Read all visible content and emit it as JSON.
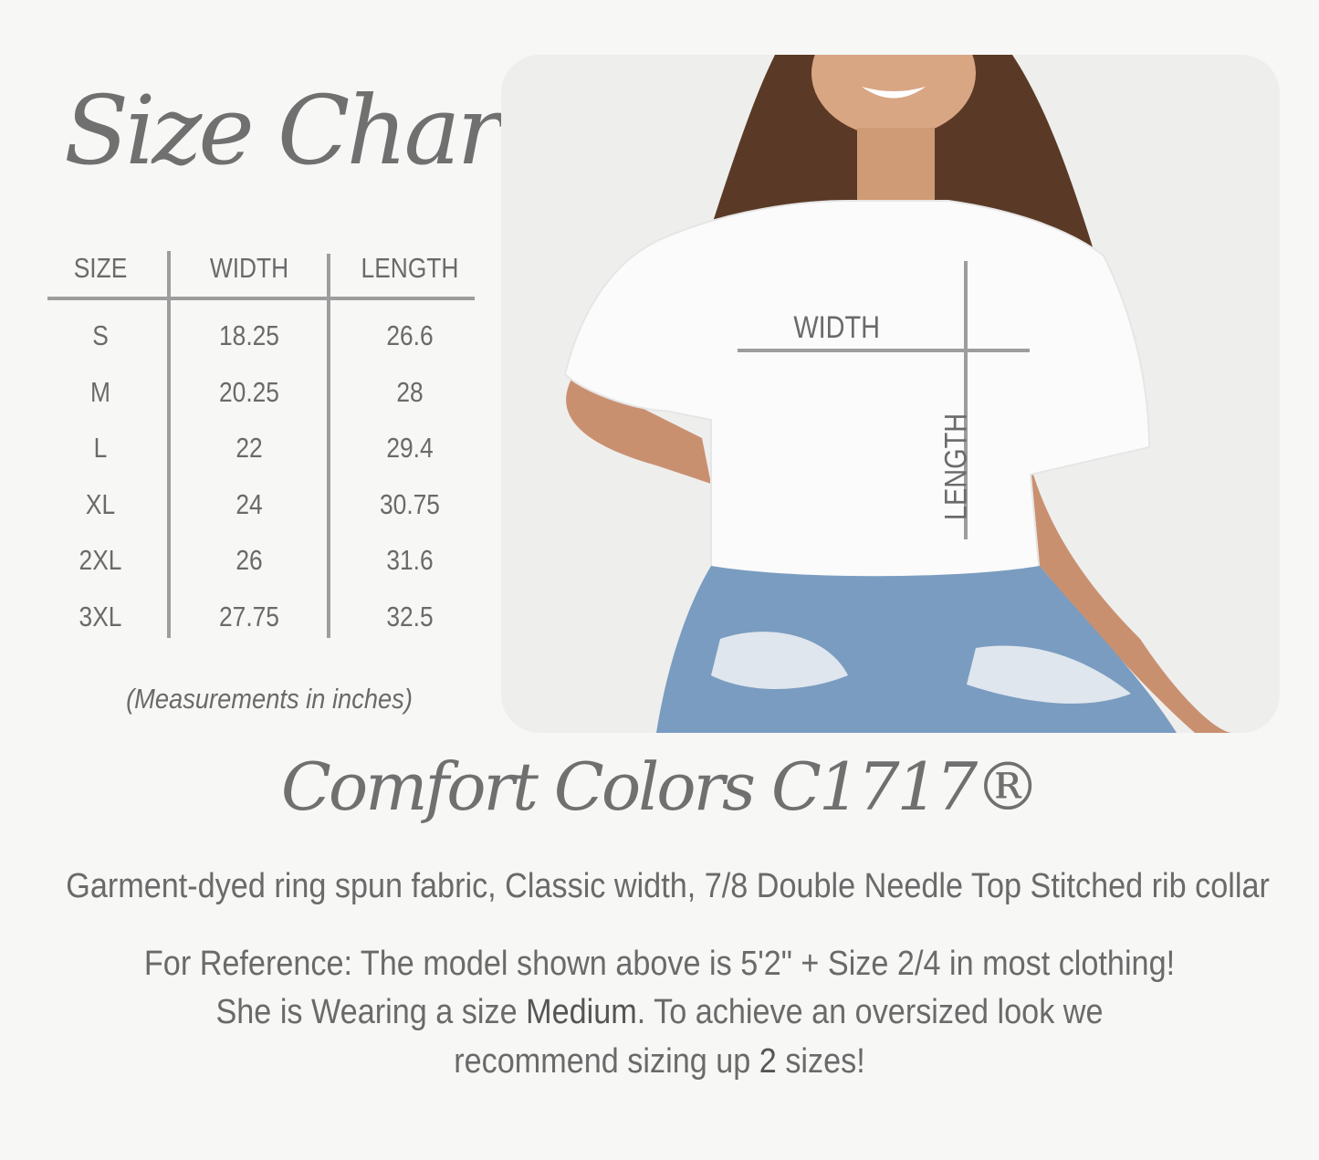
{
  "title": "Size Chart",
  "table": {
    "headers": [
      "SIZE",
      "WIDTH",
      "LENGTH"
    ],
    "rows": [
      [
        "S",
        "18.25",
        "26.6"
      ],
      [
        "M",
        "20.25",
        "28"
      ],
      [
        "L",
        "22",
        "29.4"
      ],
      [
        "XL",
        "24",
        "30.75"
      ],
      [
        "2XL",
        "26",
        "31.6"
      ],
      [
        "3XL",
        "27.75",
        "32.5"
      ]
    ]
  },
  "note": "(Measurements in inches)",
  "photo": {
    "width_label": "WIDTH",
    "length_label": "LENGTH"
  },
  "brand": "Comfort Colors C1717®",
  "description": "Garment-dyed ring spun fabric, Classic width, 7/8 Double Needle Top Stitched rib collar",
  "reference": {
    "line1": "For Reference: The model shown above is 5'2\" + Size 2/4 in most clothing!",
    "line2_a": "She is Wearing a size ",
    "line2_bold": "Medium",
    "line2_b": ". To achieve an oversized look we",
    "line3_a": "recommend sizing up ",
    "line3_bold": "2",
    "line3_b": " sizes!"
  },
  "colors": {
    "text": "#6a6a6a",
    "lines": "#9d9d9d",
    "background": "#f7f7f6"
  }
}
